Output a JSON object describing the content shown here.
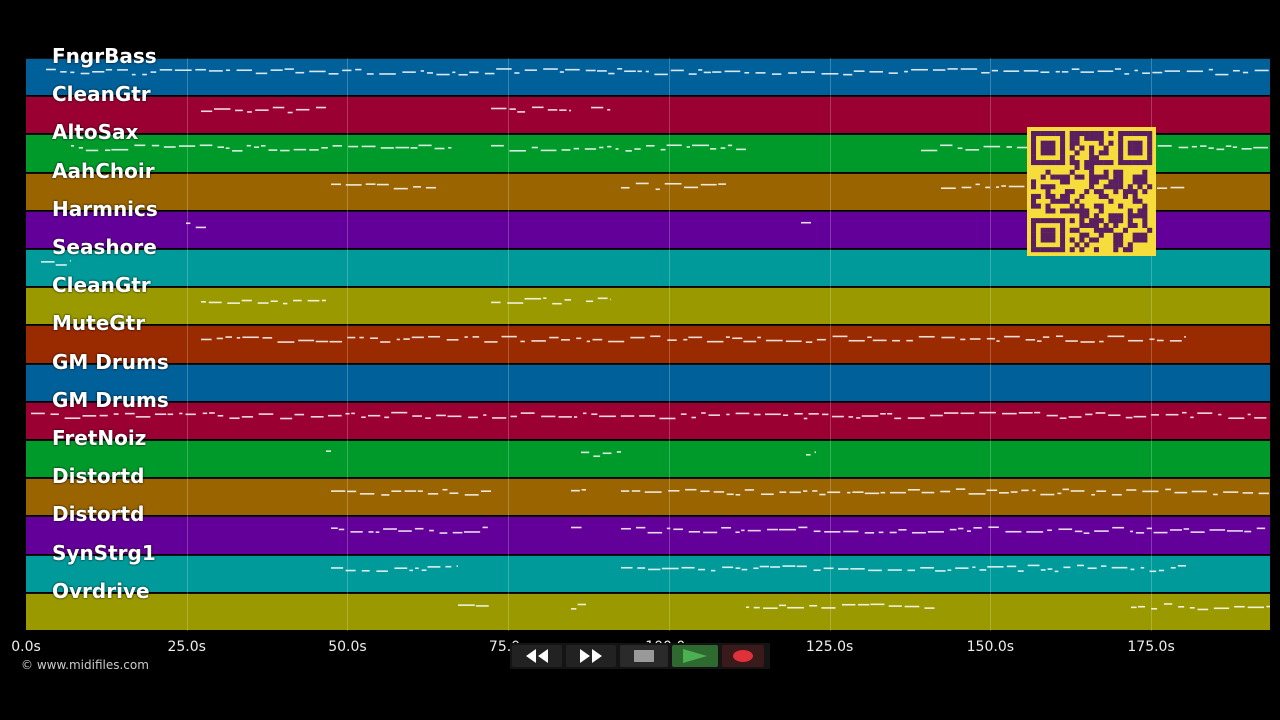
{
  "tracks": [
    {
      "name": "FngrBass",
      "color": "#00609a"
    },
    {
      "name": "CleanGtr",
      "color": "#9a0032"
    },
    {
      "name": "AltoSax",
      "color": "#009a2a"
    },
    {
      "name": "AahChoir",
      "color": "#9a6400"
    },
    {
      "name": "Harmnics",
      "color": "#64009a"
    },
    {
      "name": "Seashore",
      "color": "#009a9a"
    },
    {
      "name": "CleanGtr",
      "color": "#9a9a00"
    },
    {
      "name": "MuteGtr",
      "color": "#9a2a00"
    },
    {
      "name": "GM Drums",
      "color": "#00609a"
    },
    {
      "name": "GM Drums",
      "color": "#9a0032"
    },
    {
      "name": "FretNoiz",
      "color": "#009a2a"
    },
    {
      "name": "Distortd",
      "color": "#9a6400"
    },
    {
      "name": "Distortd",
      "color": "#64009a"
    },
    {
      "name": "SynStrg1",
      "color": "#009a9a"
    },
    {
      "name": "Ovrdrive",
      "color": "#9a9a00"
    }
  ],
  "timeline": {
    "ticks": [
      "0.0s",
      "25.0s",
      "50.0s",
      "75.0s",
      "100.0s",
      "125.0s",
      "150.0s",
      "175.0s"
    ],
    "tick_values": [
      0,
      25,
      50,
      75,
      100,
      125,
      150,
      175
    ],
    "max_seconds": 193.5
  },
  "copyright": "© www.midifiles.com",
  "transport": {
    "rewind_icon": "rewind-icon",
    "fast_forward_icon": "fast-forward-icon",
    "stop_icon": "stop-icon",
    "play_icon": "play-icon",
    "record_icon": "record-icon",
    "play_color": "#4caf50",
    "record_color": "#e0303a"
  },
  "qr_icon": "qr-code-icon"
}
